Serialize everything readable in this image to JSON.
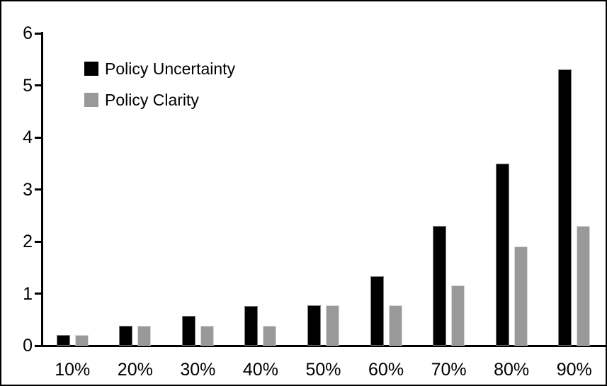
{
  "chart_data": {
    "type": "bar",
    "title": "",
    "xlabel": "",
    "ylabel": "",
    "categories": [
      "10%",
      "20%",
      "30%",
      "40%",
      "50%",
      "60%",
      "70%",
      "80%",
      "90%"
    ],
    "series": [
      {
        "name": "Policy Uncertainty",
        "color": "#000000",
        "values": [
          0.2,
          0.38,
          0.57,
          0.76,
          0.78,
          1.33,
          2.3,
          3.5,
          5.3
        ]
      },
      {
        "name": "Policy Clarity",
        "color": "#999999",
        "values": [
          0.2,
          0.38,
          0.38,
          0.38,
          0.77,
          0.77,
          1.15,
          1.9,
          2.3
        ]
      }
    ],
    "ylim": [
      0,
      6
    ],
    "yticks": [
      0,
      1,
      2,
      3,
      4,
      5,
      6
    ],
    "grid": false,
    "legend_position": "top-left",
    "frame_border_color": "#000000",
    "background_color": "#ffffff"
  }
}
